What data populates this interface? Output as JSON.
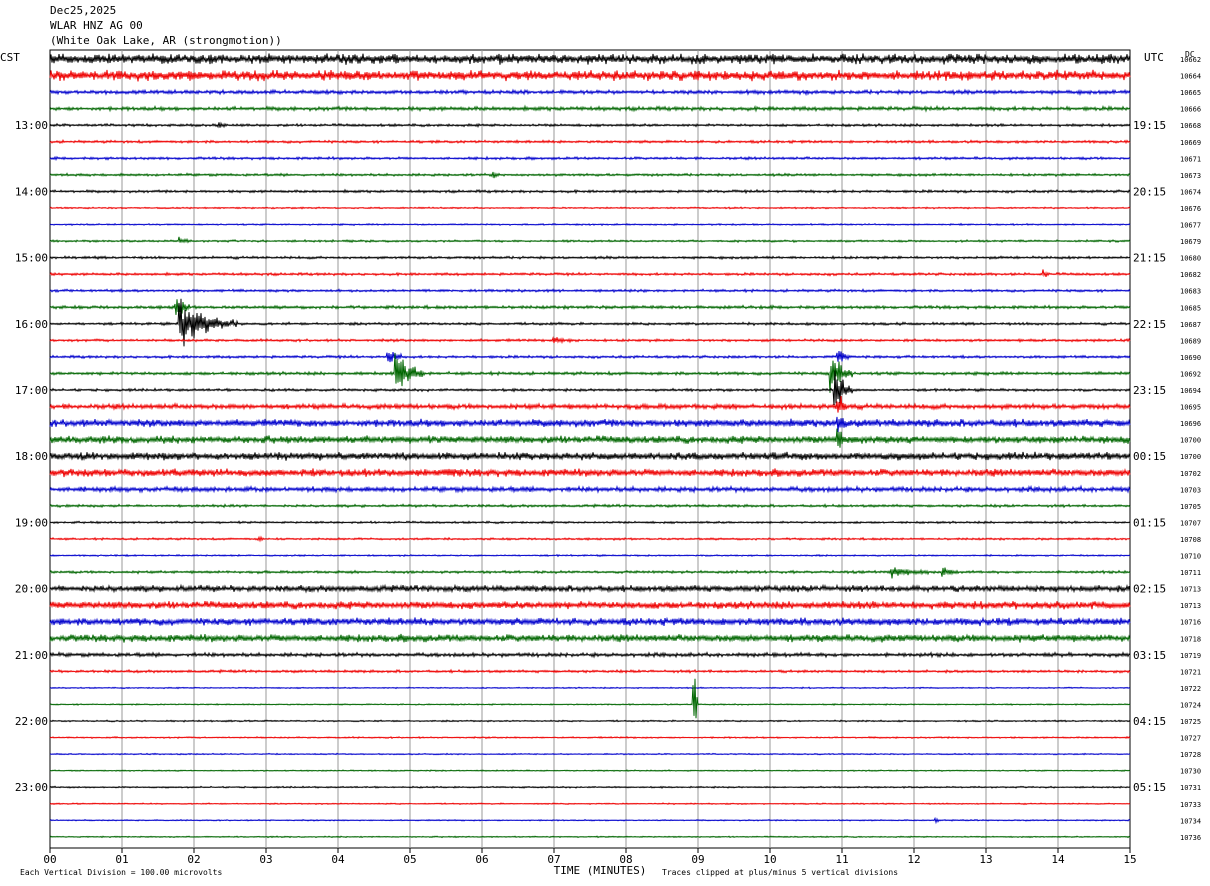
{
  "header": {
    "date": "Dec25,2025",
    "station": "WLAR HNZ AG 00",
    "location": "(White Oak Lake, AR (strongmotion))"
  },
  "chart_data": {
    "type": "line",
    "left_axis_title": "CST",
    "right_axis_title": "UTC",
    "dc_label": "DC",
    "xlabel": "TIME (MINUTES)",
    "x_ticks": [
      "00",
      "01",
      "02",
      "03",
      "04",
      "05",
      "06",
      "07",
      "08",
      "09",
      "10",
      "11",
      "12",
      "13",
      "14",
      "15"
    ],
    "xlim": [
      0,
      15
    ],
    "grid": true,
    "trace_colors": [
      "#000000",
      "#ee0000",
      "#0000cc",
      "#006600"
    ],
    "left_time_labels": [
      {
        "row": 4,
        "label": "13:00"
      },
      {
        "row": 8,
        "label": "14:00"
      },
      {
        "row": 12,
        "label": "15:00"
      },
      {
        "row": 16,
        "label": "16:00"
      },
      {
        "row": 20,
        "label": "17:00"
      },
      {
        "row": 24,
        "label": "18:00"
      },
      {
        "row": 28,
        "label": "19:00"
      },
      {
        "row": 32,
        "label": "20:00"
      },
      {
        "row": 36,
        "label": "21:00"
      },
      {
        "row": 40,
        "label": "22:00"
      },
      {
        "row": 44,
        "label": "23:00"
      }
    ],
    "right_time_labels": [
      {
        "row": 4,
        "label": "19:15"
      },
      {
        "row": 8,
        "label": "20:15"
      },
      {
        "row": 12,
        "label": "21:15"
      },
      {
        "row": 16,
        "label": "22:15"
      },
      {
        "row": 20,
        "label": "23:15"
      },
      {
        "row": 24,
        "label": "00:15"
      },
      {
        "row": 28,
        "label": "01:15"
      },
      {
        "row": 32,
        "label": "02:15"
      },
      {
        "row": 36,
        "label": "03:15"
      },
      {
        "row": 40,
        "label": "04:15"
      },
      {
        "row": 44,
        "label": "05:15"
      }
    ],
    "dc_values": [
      "10662",
      "10664",
      "10665",
      "10666",
      "10668",
      "10669",
      "10671",
      "10673",
      "10674",
      "10676",
      "10677",
      "10679",
      "10680",
      "10682",
      "10683",
      "10685",
      "10687",
      "10689",
      "10690",
      "10692",
      "10694",
      "10695",
      "10696",
      "10700",
      "10700",
      "10702",
      "10703",
      "10705",
      "10707",
      "10708",
      "10710",
      "10711",
      "10713",
      "10713",
      "10716",
      "10718",
      "10719",
      "10721",
      "10722",
      "10724",
      "10725",
      "10727",
      "10728",
      "10730",
      "10731",
      "10733",
      "10734",
      "10736"
    ],
    "row_noise": [
      4,
      4,
      1.5,
      1.5,
      1,
      1,
      1,
      1,
      1,
      0.6,
      0.6,
      0.8,
      1,
      1,
      1,
      1.2,
      1,
      1,
      1,
      1.2,
      1,
      2,
      3,
      3,
      3,
      3,
      2,
      1,
      0.8,
      0.8,
      0.6,
      1,
      2.5,
      3,
      3,
      3,
      1.5,
      1,
      0.5,
      0.5,
      0.6,
      0.6,
      0.5,
      0.5,
      0.6,
      0.5,
      0.5,
      0.5
    ],
    "events": [
      {
        "row": 16,
        "minute": 1.8,
        "duration": 0.8,
        "amplitude": 30
      },
      {
        "row": 15,
        "minute": 1.75,
        "duration": 0.2,
        "amplitude": 14
      },
      {
        "row": 19,
        "minute": 4.8,
        "duration": 0.4,
        "amplitude": 30
      },
      {
        "row": 18,
        "minute": 4.7,
        "duration": 0.2,
        "amplitude": 10
      },
      {
        "row": 20,
        "minute": 10.9,
        "duration": 0.25,
        "amplitude": 40
      },
      {
        "row": 19,
        "minute": 10.85,
        "duration": 0.3,
        "amplitude": 30
      },
      {
        "row": 18,
        "minute": 10.95,
        "duration": 0.15,
        "amplitude": 12
      },
      {
        "row": 21,
        "minute": 10.95,
        "duration": 0.15,
        "amplitude": 15
      },
      {
        "row": 22,
        "minute": 10.95,
        "duration": 0.15,
        "amplitude": 12
      },
      {
        "row": 23,
        "minute": 10.95,
        "duration": 0.15,
        "amplitude": 12
      },
      {
        "row": 17,
        "minute": 7.0,
        "duration": 0.4,
        "amplitude": 3
      },
      {
        "row": 25,
        "minute": 5.4,
        "duration": 0.3,
        "amplitude": 4
      },
      {
        "row": 31,
        "minute": 11.7,
        "duration": 0.5,
        "amplitude": 8
      },
      {
        "row": 31,
        "minute": 12.4,
        "duration": 0.2,
        "amplitude": 6
      },
      {
        "row": 39,
        "minute": 8.95,
        "duration": 0.05,
        "amplitude": 48
      },
      {
        "row": 13,
        "minute": 13.8,
        "duration": 0.08,
        "amplitude": 6
      },
      {
        "row": 7,
        "minute": 6.15,
        "duration": 0.08,
        "amplitude": 6
      },
      {
        "row": 4,
        "minute": 2.35,
        "duration": 0.1,
        "amplitude": 4
      },
      {
        "row": 11,
        "minute": 1.8,
        "duration": 0.15,
        "amplitude": 5
      },
      {
        "row": 46,
        "minute": 12.3,
        "duration": 0.06,
        "amplitude": 5
      },
      {
        "row": 29,
        "minute": 2.9,
        "duration": 0.06,
        "amplitude": 4
      }
    ],
    "footer_left": "Each Vertical Division =  100.00 microvolts",
    "footer_right": "Traces clipped at plus/minus 5 vertical divisions"
  }
}
